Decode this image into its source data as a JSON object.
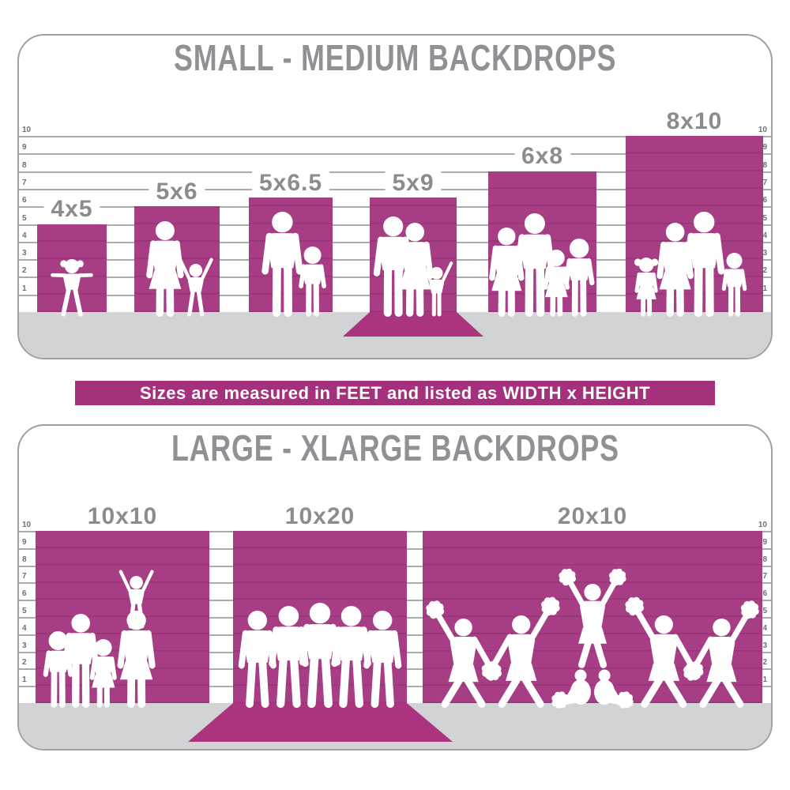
{
  "top_panel": {
    "title": "SMALL - MEDIUM BACKDROPS",
    "ticks": [
      "10",
      "9",
      "8",
      "7",
      "6",
      "5",
      "4",
      "3",
      "2",
      "1"
    ],
    "bars": [
      {
        "label": "4x5",
        "width_ft": 4,
        "height_ft": 5,
        "visible_height_ft": 5,
        "floor_sweep": false,
        "silhouette": "toddler-girl"
      },
      {
        "label": "5x6",
        "width_ft": 5,
        "height_ft": 6,
        "visible_height_ft": 6,
        "floor_sweep": false,
        "silhouette": "mother-and-child"
      },
      {
        "label": "5x6.5",
        "width_ft": 5,
        "height_ft": 6.5,
        "visible_height_ft": 6.5,
        "floor_sweep": false,
        "silhouette": "father-and-son"
      },
      {
        "label": "5x9",
        "width_ft": 5,
        "height_ft": 9,
        "visible_height_ft": 6.5,
        "floor_sweep": true,
        "silhouette": "family-of-three"
      },
      {
        "label": "6x8",
        "width_ft": 6,
        "height_ft": 8,
        "visible_height_ft": 8,
        "floor_sweep": false,
        "silhouette": "family-of-four"
      },
      {
        "label": "8x10",
        "width_ft": 8,
        "height_ft": 10,
        "visible_height_ft": 10,
        "floor_sweep": false,
        "silhouette": "family-of-four-with-kids"
      }
    ]
  },
  "banner": {
    "text": "Sizes are measured in FEET and listed as WIDTH x HEIGHT"
  },
  "bottom_panel": {
    "title": "LARGE - XLARGE BACKDROPS",
    "ticks": [
      "10",
      "9",
      "8",
      "7",
      "6",
      "5",
      "4",
      "3",
      "2",
      "1"
    ],
    "bars": [
      {
        "label": "10x10",
        "width_ft": 10,
        "height_ft": 10,
        "visible_height_ft": 10,
        "floor_sweep": false,
        "silhouette": "family-with-child-on-shoulders"
      },
      {
        "label": "10x20",
        "width_ft": 10,
        "height_ft": 20,
        "visible_height_ft": 10,
        "floor_sweep": true,
        "silhouette": "group-of-five-men"
      },
      {
        "label": "20x10",
        "width_ft": 20,
        "height_ft": 10,
        "visible_height_ft": 10,
        "floor_sweep": false,
        "silhouette": "cheerleading-squad"
      }
    ]
  },
  "colors": {
    "backdrop_magenta": "#a73d85",
    "sweep_magenta": "#ab347e",
    "banner_magenta": "#a5317c",
    "title_gray": "#909194",
    "label_gray": "#8b8c8e",
    "tick_gray": "#6f7072",
    "ground_gray": "#d2d3d5",
    "grid_gray": "#8e8f92",
    "panel_border_gray": "#9fa0a2",
    "silhouette_white": "#ffffff"
  },
  "chart_data": [
    {
      "type": "bar",
      "title": "SMALL - MEDIUM BACKDROPS",
      "categories": [
        "4x5",
        "5x6",
        "5x6.5",
        "5x9",
        "6x8",
        "8x10"
      ],
      "series": [
        {
          "name": "width_ft",
          "values": [
            4,
            5,
            5,
            5,
            6,
            8
          ]
        },
        {
          "name": "height_ft",
          "values": [
            5,
            6,
            6.5,
            9,
            8,
            10
          ]
        },
        {
          "name": "visible_height_ft",
          "values": [
            5,
            6,
            6.5,
            6.5,
            8,
            10
          ]
        }
      ],
      "ylabel": "feet",
      "ylim": [
        0,
        10
      ],
      "grid": true,
      "note": "5x9 drapes onto the floor as a sweep"
    },
    {
      "type": "bar",
      "title": "LARGE - XLARGE BACKDROPS",
      "categories": [
        "10x10",
        "10x20",
        "20x10"
      ],
      "series": [
        {
          "name": "width_ft",
          "values": [
            10,
            10,
            20
          ]
        },
        {
          "name": "height_ft",
          "values": [
            10,
            20,
            10
          ]
        },
        {
          "name": "visible_height_ft",
          "values": [
            10,
            10,
            10
          ]
        }
      ],
      "ylabel": "feet",
      "ylim": [
        0,
        10
      ],
      "grid": true,
      "note": "10x20 drapes onto the floor as a sweep"
    }
  ]
}
